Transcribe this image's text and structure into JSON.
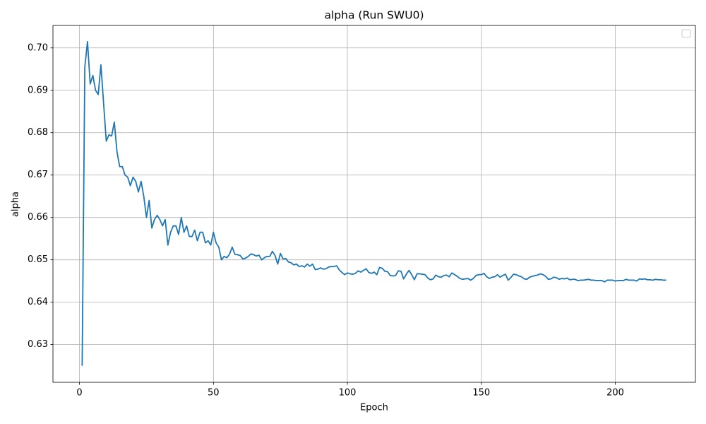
{
  "chart_data": {
    "type": "line",
    "title": "alpha (Run SWU0)",
    "xlabel": "Epoch",
    "ylabel": "alpha",
    "x": [
      1,
      2,
      3,
      4,
      5,
      6,
      7,
      8,
      9,
      10,
      11,
      12,
      13,
      14,
      15,
      16,
      17,
      18,
      19,
      20,
      21,
      22,
      23,
      24,
      25,
      26,
      27,
      28,
      29,
      30,
      31,
      32,
      33,
      34,
      35,
      36,
      37,
      38,
      39,
      40,
      41,
      42,
      43,
      44,
      45,
      46,
      47,
      48,
      49,
      50,
      51,
      52,
      53,
      54,
      55,
      56,
      57,
      58,
      59,
      60,
      61,
      62,
      63,
      64,
      65,
      66,
      67,
      68,
      69,
      70,
      71,
      72,
      73,
      74,
      75,
      76,
      77,
      78,
      79,
      80,
      81,
      82,
      83,
      84,
      85,
      86,
      87,
      88,
      89,
      90,
      91,
      92,
      93,
      94,
      95,
      96,
      97,
      98,
      99,
      100,
      101,
      102,
      103,
      104,
      105,
      106,
      107,
      108,
      109,
      110,
      111,
      112,
      113,
      114,
      115,
      116,
      117,
      118,
      119,
      120,
      121,
      122,
      123,
      124,
      125,
      126,
      127,
      128,
      129,
      130,
      131,
      132,
      133,
      134,
      135,
      136,
      137,
      138,
      139,
      140,
      141,
      142,
      143,
      144,
      145,
      146,
      147,
      148,
      149,
      150,
      151,
      152,
      153,
      154,
      155,
      156,
      157,
      158,
      159,
      160,
      161,
      162,
      163,
      164,
      165,
      166,
      167,
      168,
      169,
      170,
      171,
      172,
      173,
      174,
      175,
      176,
      177,
      178,
      179,
      180,
      181,
      182,
      183,
      184,
      185,
      186,
      187,
      188,
      189,
      190,
      191,
      192,
      193,
      194,
      195,
      196,
      197,
      198,
      199,
      200,
      201,
      202,
      203,
      204,
      205,
      206,
      207,
      208,
      209,
      210,
      211,
      212,
      213,
      214,
      215,
      216,
      217,
      218,
      219
    ],
    "series": [
      {
        "color": "#1f77b4",
        "values": [
          0.625,
          0.6955,
          0.7015,
          0.6915,
          0.6935,
          0.69,
          0.689,
          0.696,
          0.687,
          0.678,
          0.6795,
          0.6792,
          0.6825,
          0.6755,
          0.672,
          0.672,
          0.67,
          0.6695,
          0.6675,
          0.6695,
          0.6685,
          0.666,
          0.6685,
          0.665,
          0.66,
          0.664,
          0.6575,
          0.6595,
          0.6605,
          0.6595,
          0.658,
          0.6595,
          0.6535,
          0.6565,
          0.658,
          0.658,
          0.656,
          0.66,
          0.6565,
          0.658,
          0.6555,
          0.6555,
          0.657,
          0.6545,
          0.6565,
          0.6565,
          0.654,
          0.6545,
          0.6535,
          0.6565,
          0.654,
          0.653,
          0.65,
          0.6508,
          0.6505,
          0.6513,
          0.653,
          0.6513,
          0.6512,
          0.651,
          0.6502,
          0.6504,
          0.6508,
          0.6514,
          0.6512,
          0.6509,
          0.6511,
          0.65,
          0.6505,
          0.6508,
          0.6508,
          0.652,
          0.651,
          0.649,
          0.6515,
          0.6502,
          0.6503,
          0.6495,
          0.6493,
          0.6488,
          0.649,
          0.6484,
          0.6486,
          0.6483,
          0.649,
          0.6485,
          0.649,
          0.6477,
          0.6478,
          0.6481,
          0.6478,
          0.6479,
          0.6483,
          0.6484,
          0.6484,
          0.6486,
          0.6476,
          0.647,
          0.6465,
          0.6469,
          0.6467,
          0.6466,
          0.6468,
          0.6474,
          0.6471,
          0.6475,
          0.6479,
          0.647,
          0.6468,
          0.6471,
          0.6465,
          0.6482,
          0.648,
          0.6473,
          0.6472,
          0.6463,
          0.6462,
          0.6463,
          0.6474,
          0.6473,
          0.6455,
          0.6466,
          0.6475,
          0.6465,
          0.6453,
          0.6467,
          0.6467,
          0.6466,
          0.6465,
          0.6457,
          0.6453,
          0.6455,
          0.6464,
          0.646,
          0.6459,
          0.6463,
          0.6464,
          0.646,
          0.6469,
          0.6465,
          0.6461,
          0.6456,
          0.6454,
          0.6455,
          0.6456,
          0.6452,
          0.6456,
          0.6463,
          0.6465,
          0.6465,
          0.6468,
          0.646,
          0.6456,
          0.6459,
          0.646,
          0.6465,
          0.6459,
          0.6463,
          0.6466,
          0.6452,
          0.6458,
          0.6466,
          0.6465,
          0.6462,
          0.646,
          0.6455,
          0.6454,
          0.6459,
          0.6461,
          0.6463,
          0.6464,
          0.6467,
          0.6465,
          0.6461,
          0.6454,
          0.6455,
          0.6459,
          0.6458,
          0.6454,
          0.6456,
          0.6455,
          0.6457,
          0.6453,
          0.6454,
          0.6454,
          0.6451,
          0.6452,
          0.6452,
          0.6453,
          0.6454,
          0.6452,
          0.6452,
          0.6451,
          0.6451,
          0.6451,
          0.6448,
          0.6452,
          0.6452,
          0.6452,
          0.645,
          0.6451,
          0.6451,
          0.6451,
          0.6454,
          0.6452,
          0.6452,
          0.6452,
          0.645,
          0.6455,
          0.6454,
          0.6455,
          0.6453,
          0.6453,
          0.6452,
          0.6454,
          0.6453,
          0.6453,
          0.6452,
          0.6452
        ]
      }
    ],
    "xlim": [
      -9.9,
      229.9
    ],
    "xticks": [
      0,
      50,
      100,
      150,
      200
    ],
    "ylim": [
      0.6211,
      0.7053
    ],
    "yticks": [
      0.63,
      0.64,
      0.65,
      0.66,
      0.67,
      0.68,
      0.69,
      {
        "value": 0.7,
        "label": "0.70"
      }
    ],
    "grid": true,
    "legend": "upper right"
  }
}
